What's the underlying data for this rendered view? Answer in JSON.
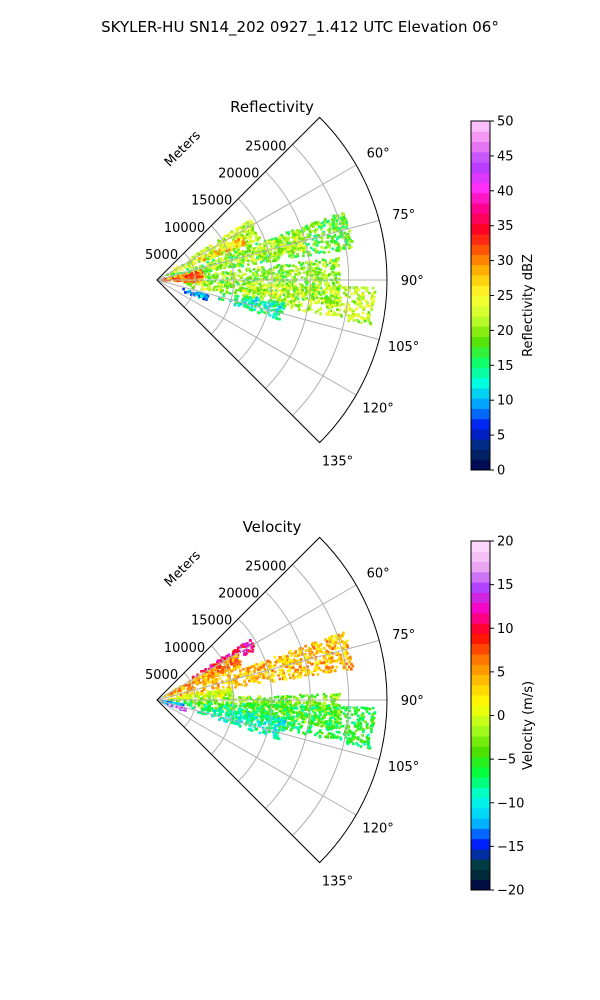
{
  "figure": {
    "suptitle": "SKYLER-HU  SN14_202  0927_1.412 UTC Elevation 06°"
  },
  "chart_data": [
    {
      "type": "heatmap",
      "projection": "polar-sector",
      "title": "Reflectivity",
      "range_axis_label": "Meters",
      "range_ticks": [
        5000,
        10000,
        15000,
        20000,
        25000
      ],
      "range_tick_labels": [
        "5000",
        "10000",
        "15000",
        "20000",
        "25000"
      ],
      "range_max": 30000,
      "azimuth_range_deg": [
        45,
        135
      ],
      "azimuth_ticks_deg": [
        60,
        75,
        90,
        105,
        120,
        135
      ],
      "azimuth_tick_labels": [
        "60°",
        "75°",
        "90°",
        "105°",
        "120°",
        "135°"
      ],
      "grid": true,
      "colorbar": {
        "label": "Reflectivity dBZ",
        "min": 0,
        "max": 50,
        "ticks": [
          0,
          5,
          10,
          15,
          20,
          25,
          30,
          35,
          40,
          45,
          50
        ],
        "tick_labels": [
          "0",
          "5",
          "10",
          "15",
          "20",
          "25",
          "30",
          "35",
          "40",
          "45",
          "50"
        ],
        "stops": [
          "#00004a",
          "#003070",
          "#0018f0",
          "#00a0ff",
          "#00ffe0",
          "#10ff60",
          "#60e000",
          "#c8ff30",
          "#ffff30",
          "#ffc000",
          "#ff6000",
          "#ff0020",
          "#ff0090",
          "#ff30ff",
          "#b040ff",
          "#f080f0",
          "#ffd0ff"
        ]
      },
      "echo_regions": [
        {
          "az_start": 57,
          "az_end": 69,
          "r_start": 500,
          "r_end": 14500,
          "value": 22
        },
        {
          "az_start": 63,
          "az_end": 68,
          "r_start": 6000,
          "r_end": 12500,
          "value": 27
        },
        {
          "az_start": 70,
          "az_end": 81,
          "r_start": 1000,
          "r_end": 26000,
          "value": 18
        },
        {
          "az_start": 71,
          "az_end": 79,
          "r_start": 4000,
          "r_end": 20000,
          "value": 22
        },
        {
          "az_start": 83,
          "az_end": 98,
          "r_start": 500,
          "r_end": 24000,
          "value": 20
        },
        {
          "az_start": 92,
          "az_end": 102,
          "r_start": 3000,
          "r_end": 28500,
          "value": 22
        },
        {
          "az_start": 100,
          "az_end": 108,
          "r_start": 8000,
          "r_end": 17000,
          "value": 14
        },
        {
          "az_start": 78,
          "az_end": 94,
          "r_start": 300,
          "r_end": 6000,
          "value": 30
        },
        {
          "az_start": 107,
          "az_end": 114,
          "r_start": 3500,
          "r_end": 7000,
          "value": 9
        }
      ]
    },
    {
      "type": "heatmap",
      "projection": "polar-sector",
      "title": "Velocity",
      "range_axis_label": "Meters",
      "range_ticks": [
        5000,
        10000,
        15000,
        20000,
        25000
      ],
      "range_tick_labels": [
        "5000",
        "10000",
        "15000",
        "20000",
        "25000"
      ],
      "range_max": 30000,
      "azimuth_range_deg": [
        45,
        135
      ],
      "azimuth_ticks_deg": [
        60,
        75,
        90,
        105,
        120,
        135
      ],
      "azimuth_tick_labels": [
        "60°",
        "75°",
        "90°",
        "105°",
        "120°",
        "135°"
      ],
      "grid": true,
      "colorbar": {
        "label": "Velocity (m/s)",
        "min": -20,
        "max": 20,
        "ticks": [
          -20,
          -15,
          -10,
          -5,
          0,
          5,
          10,
          15,
          20
        ],
        "tick_labels": [
          "−20",
          "−15",
          "−10",
          "−5",
          "0",
          "5",
          "10",
          "15",
          "20"
        ],
        "stops": [
          "#00004a",
          "#004030",
          "#0020ff",
          "#00c8ff",
          "#00ffe0",
          "#00ff40",
          "#50e000",
          "#b0ff20",
          "#ffff00",
          "#ffc000",
          "#ff7000",
          "#ff0000",
          "#ff00c0",
          "#b040ff",
          "#f0b0f0",
          "#ffe0ff"
        ]
      },
      "echo_regions": [
        {
          "az_start": 57,
          "az_end": 63,
          "r_start": 5000,
          "r_end": 14500,
          "value": 11
        },
        {
          "az_start": 60,
          "az_end": 69,
          "r_start": 500,
          "r_end": 12000,
          "value": 5
        },
        {
          "az_start": 70,
          "az_end": 81,
          "r_start": 1000,
          "r_end": 26000,
          "value": 4
        },
        {
          "az_start": 81,
          "az_end": 88,
          "r_start": 500,
          "r_end": 10000,
          "value": 0
        },
        {
          "az_start": 88,
          "az_end": 99,
          "r_start": 500,
          "r_end": 24000,
          "value": -3
        },
        {
          "az_start": 92,
          "az_end": 103,
          "r_start": 3000,
          "r_end": 28500,
          "value": -6
        },
        {
          "az_start": 98,
          "az_end": 108,
          "r_start": 5000,
          "r_end": 17000,
          "value": -9
        },
        {
          "az_start": 100,
          "az_end": 112,
          "r_start": 200,
          "r_end": 3500,
          "value": -12
        },
        {
          "az_start": 106,
          "az_end": 112,
          "r_start": 1500,
          "r_end": 4000,
          "value": 16
        }
      ]
    }
  ]
}
